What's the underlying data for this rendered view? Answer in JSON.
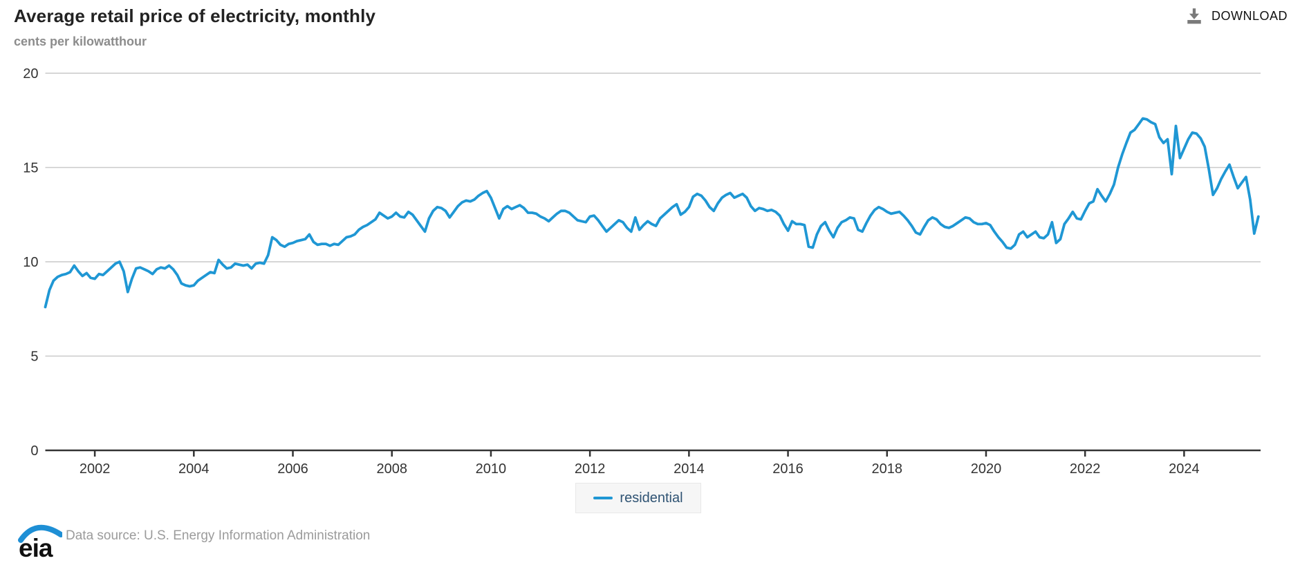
{
  "header": {
    "title": "Average retail price of electricity, monthly",
    "subtitle": "cents per kilowatthour",
    "download_label": "DOWNLOAD"
  },
  "legend": {
    "series_label": "residential"
  },
  "footer": {
    "logo_text": "eia",
    "source_text": "Data source: U.S. Energy Information Administration"
  },
  "colors": {
    "line": "#1f97d4",
    "grid": "#c9c9c9",
    "axis": "#333333",
    "tick_label": "#333333",
    "legend_text": "#2f5373",
    "download_icon": "#7a7a7a",
    "logo_swoosh": "#1e8fd5",
    "logo_text": "#111111"
  },
  "chart_data": {
    "type": "line",
    "title": "Average retail price of electricity, monthly",
    "ylabel": "cents per kilowatthour",
    "xlabel": "",
    "frequency": "monthly",
    "x_start": "2001-01",
    "x_end": "2025-07",
    "ylim": [
      0,
      20
    ],
    "y_ticks": [
      0,
      5,
      10,
      15,
      20
    ],
    "x_ticks": [
      2002,
      2004,
      2006,
      2008,
      2010,
      2012,
      2014,
      2016,
      2018,
      2020,
      2022,
      2024
    ],
    "grid": "horizontal",
    "legend_position": "bottom-center",
    "series": [
      {
        "name": "residential",
        "color": "#1f97d4",
        "values": [
          7.6,
          8.5,
          9.0,
          9.2,
          9.3,
          9.35,
          9.45,
          9.8,
          9.5,
          9.25,
          9.4,
          9.15,
          9.1,
          9.35,
          9.3,
          9.5,
          9.7,
          9.9,
          10.0,
          9.5,
          8.4,
          9.1,
          9.65,
          9.7,
          9.6,
          9.5,
          9.35,
          9.6,
          9.7,
          9.65,
          9.8,
          9.6,
          9.3,
          8.85,
          8.75,
          8.7,
          8.75,
          9.0,
          9.15,
          9.3,
          9.45,
          9.4,
          10.1,
          9.85,
          9.65,
          9.7,
          9.9,
          9.85,
          9.8,
          9.85,
          9.65,
          9.9,
          9.95,
          9.9,
          10.35,
          11.3,
          11.15,
          10.9,
          10.8,
          10.95,
          11.0,
          11.1,
          11.15,
          11.2,
          11.45,
          11.05,
          10.9,
          10.95,
          10.95,
          10.85,
          10.95,
          10.9,
          11.1,
          11.3,
          11.35,
          11.45,
          11.7,
          11.85,
          11.95,
          12.1,
          12.25,
          12.6,
          12.45,
          12.3,
          12.4,
          12.6,
          12.4,
          12.35,
          12.65,
          12.5,
          12.2,
          11.9,
          11.6,
          12.3,
          12.7,
          12.9,
          12.85,
          12.7,
          12.35,
          12.65,
          12.95,
          13.15,
          13.25,
          13.2,
          13.3,
          13.5,
          13.65,
          13.75,
          13.4,
          12.85,
          12.3,
          12.8,
          12.95,
          12.8,
          12.9,
          13.0,
          12.85,
          12.6,
          12.6,
          12.55,
          12.4,
          12.3,
          12.15,
          12.35,
          12.55,
          12.7,
          12.7,
          12.6,
          12.4,
          12.2,
          12.15,
          12.1,
          12.4,
          12.45,
          12.2,
          11.9,
          11.6,
          11.8,
          12.0,
          12.2,
          12.1,
          11.8,
          11.6,
          12.35,
          11.7,
          11.95,
          12.15,
          12.0,
          11.9,
          12.3,
          12.5,
          12.7,
          12.9,
          13.05,
          12.5,
          12.65,
          12.9,
          13.45,
          13.6,
          13.5,
          13.25,
          12.9,
          12.7,
          13.1,
          13.4,
          13.55,
          13.65,
          13.4,
          13.5,
          13.6,
          13.4,
          12.95,
          12.7,
          12.85,
          12.8,
          12.7,
          12.75,
          12.65,
          12.45,
          12.0,
          11.65,
          12.15,
          12.0,
          12.0,
          11.95,
          10.8,
          10.75,
          11.45,
          11.9,
          12.1,
          11.65,
          11.3,
          11.8,
          12.1,
          12.2,
          12.35,
          12.3,
          11.7,
          11.6,
          12.05,
          12.45,
          12.75,
          12.9,
          12.8,
          12.65,
          12.55,
          12.6,
          12.65,
          12.45,
          12.2,
          11.9,
          11.55,
          11.45,
          11.85,
          12.2,
          12.35,
          12.25,
          12.0,
          11.85,
          11.8,
          11.9,
          12.05,
          12.2,
          12.35,
          12.3,
          12.1,
          12.0,
          12.0,
          12.05,
          11.95,
          11.6,
          11.3,
          11.05,
          10.75,
          10.7,
          10.9,
          11.45,
          11.6,
          11.3,
          11.45,
          11.6,
          11.3,
          11.25,
          11.45,
          12.1,
          11.0,
          11.2,
          12.0,
          12.3,
          12.65,
          12.3,
          12.25,
          12.7,
          13.1,
          13.2,
          13.85,
          13.5,
          13.2,
          13.6,
          14.1,
          15.0,
          15.7,
          16.3,
          16.85,
          17.0,
          17.3,
          17.6,
          17.55,
          17.4,
          17.3,
          16.6,
          16.3,
          16.5,
          14.65,
          17.2,
          15.5,
          16.0,
          16.5,
          16.85,
          16.8,
          16.55,
          16.1,
          14.9,
          13.55,
          13.9,
          14.4,
          14.8,
          15.15,
          14.5,
          13.9,
          14.2,
          14.5,
          13.3,
          11.5,
          12.4
        ]
      }
    ]
  }
}
